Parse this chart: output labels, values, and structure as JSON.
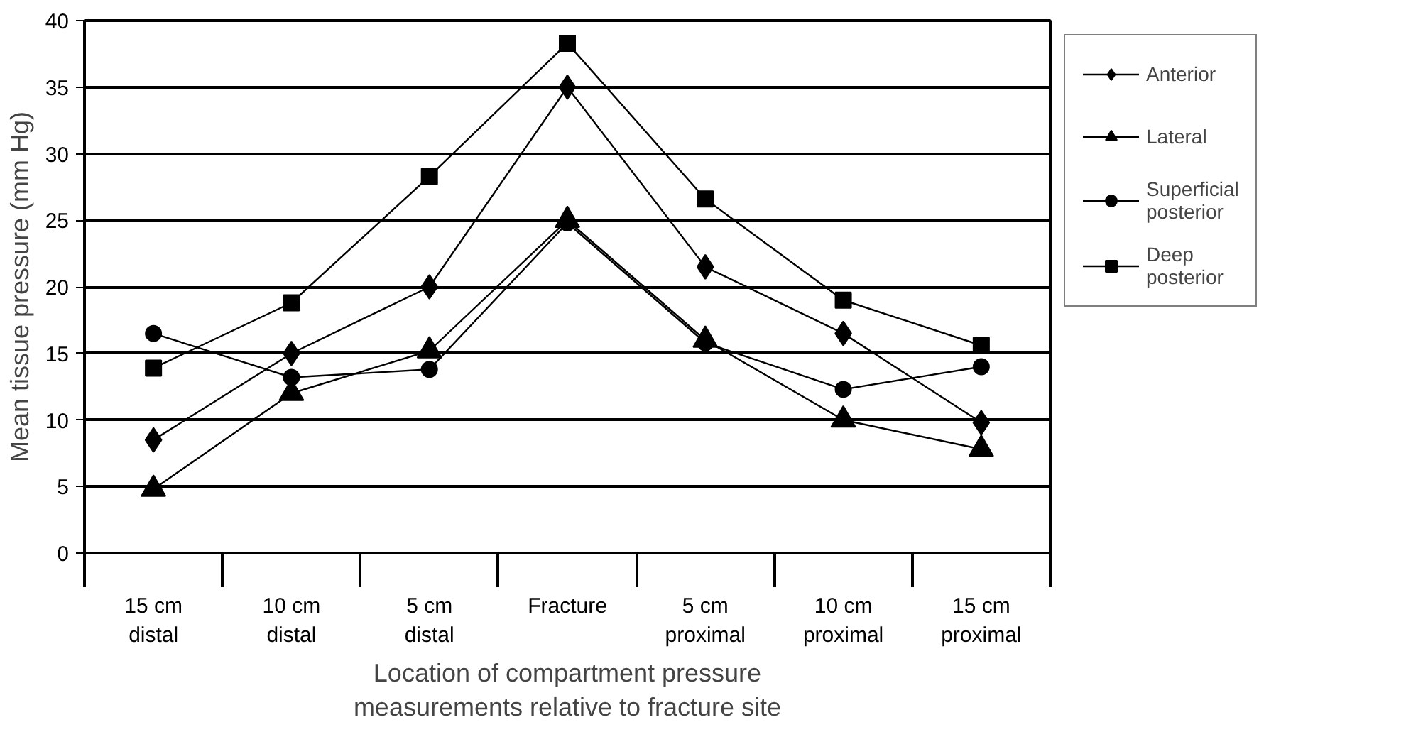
{
  "chart_data": {
    "type": "line",
    "xlabel": "Location of compartment pressure\nmeasurements relative to fracture site",
    "ylabel": "Mean tissue pressure (mm Hg)",
    "categories": [
      "15 cm\ndistal",
      "10 cm\ndistal",
      "5 cm\ndistal",
      "Fracture",
      "5 cm\nproximal",
      "10 cm\nproximal",
      "15 cm\nproximal"
    ],
    "series": [
      {
        "name": "Anterior",
        "color": "#000000",
        "marker": "diamond",
        "values": [
          8.5,
          15,
          20,
          35,
          21.5,
          16.5,
          9.8
        ]
      },
      {
        "name": "Lateral",
        "color": "#000000",
        "marker": "triangle",
        "values": [
          4.8,
          12,
          15.2,
          25,
          16,
          10,
          7.8
        ]
      },
      {
        "name": "Superficial\nposterior",
        "color": "#000000",
        "marker": "circle",
        "values": [
          16.5,
          13.2,
          13.8,
          24.8,
          15.8,
          12.3,
          14
        ]
      },
      {
        "name": "Deep\nposterior",
        "color": "#000000",
        "marker": "square",
        "values": [
          13.9,
          18.8,
          28.3,
          38.3,
          26.6,
          19,
          15.6
        ]
      }
    ],
    "ylim": [
      0,
      40
    ],
    "yticks": [
      0,
      5,
      10,
      15,
      20,
      25,
      30,
      35,
      40
    ],
    "grid": "y",
    "legend": "top right",
    "line_style": "solid"
  }
}
